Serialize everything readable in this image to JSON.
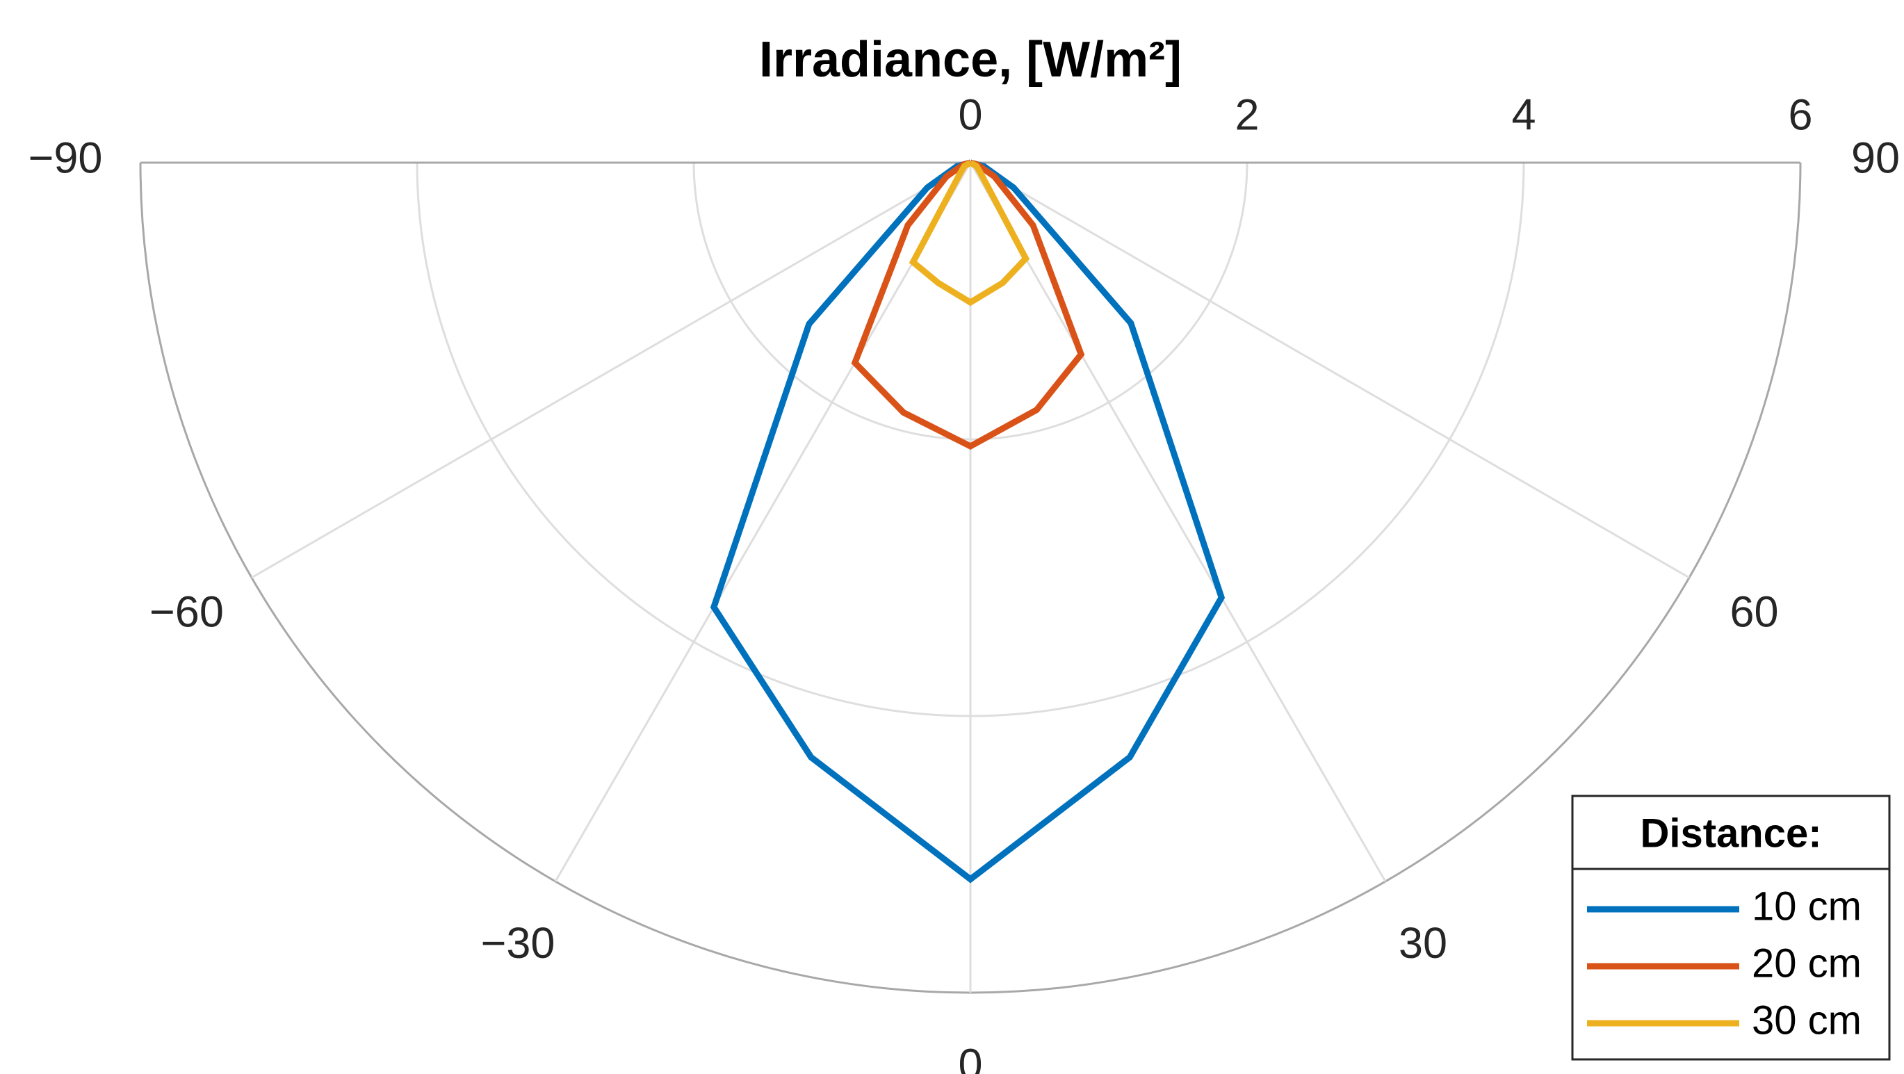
{
  "chart_data": {
    "type": "polar",
    "title": "Irradiance, [W/m²]",
    "theta": [
      -90,
      -75,
      -60,
      -45,
      -30,
      -15,
      0,
      15,
      30,
      45,
      60,
      75,
      90
    ],
    "series": [
      {
        "name": "10 cm",
        "color": "#0072bd",
        "values": [
          0,
          0.1,
          0.36,
          1.65,
          3.71,
          4.45,
          5.18,
          4.45,
          3.63,
          1.64,
          0.36,
          0.1,
          0
        ]
      },
      {
        "name": "20 cm",
        "color": "#d95319",
        "values": [
          0,
          0.05,
          0.2,
          0.64,
          1.67,
          1.87,
          2.05,
          1.85,
          1.6,
          0.64,
          0.2,
          0.05,
          0
        ]
      },
      {
        "name": "30 cm",
        "color": "#edb120",
        "values": [
          0,
          0,
          0.05,
          0.1,
          0.83,
          0.9,
          1.01,
          0.9,
          0.8,
          0.1,
          0.05,
          0,
          0
        ]
      }
    ],
    "rlim": [
      0,
      6
    ],
    "rticks": [
      0,
      2,
      4,
      6
    ],
    "thetalim": [
      -90,
      90
    ],
    "thetaticks": [
      {
        "value": -90,
        "label": "−90"
      },
      {
        "value": -60,
        "label": "−60"
      },
      {
        "value": -30,
        "label": "−30"
      },
      0,
      30,
      60,
      90
    ],
    "grid": true,
    "legend_title": "Distance:",
    "legend_position": "lower right"
  }
}
